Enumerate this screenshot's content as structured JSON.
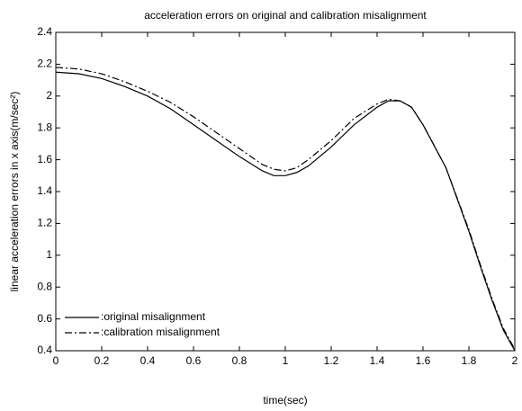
{
  "chart_data": {
    "type": "line",
    "title": "acceleration errors on original and calibration misalignment",
    "x_label": "time(sec)",
    "y_label": "linear acceleration errors in x axis(m/sec²)",
    "x": [
      0,
      0.1,
      0.2,
      0.3,
      0.4,
      0.5,
      0.6,
      0.7,
      0.8,
      0.9,
      0.95,
      1.0,
      1.05,
      1.1,
      1.2,
      1.3,
      1.4,
      1.45,
      1.5,
      1.55,
      1.6,
      1.7,
      1.8,
      1.85,
      1.9,
      1.95,
      2.0
    ],
    "series": [
      {
        "name": ":original misalignment",
        "color": "#000000",
        "dash": "solid",
        "values": [
          2.15,
          2.14,
          2.11,
          2.06,
          2.0,
          1.92,
          1.82,
          1.72,
          1.62,
          1.53,
          1.5,
          1.5,
          1.52,
          1.56,
          1.68,
          1.82,
          1.93,
          1.97,
          1.97,
          1.93,
          1.82,
          1.55,
          1.15,
          0.93,
          0.72,
          0.53,
          0.4
        ]
      },
      {
        "name": ":calibration misalignment",
        "color": "#000000",
        "dash": "dashdot",
        "values": [
          2.18,
          2.17,
          2.14,
          2.09,
          2.03,
          1.96,
          1.87,
          1.77,
          1.67,
          1.57,
          1.54,
          1.53,
          1.55,
          1.6,
          1.72,
          1.86,
          1.95,
          1.98,
          1.97,
          1.93,
          1.82,
          1.55,
          1.16,
          0.94,
          0.73,
          0.54,
          0.41
        ]
      }
    ],
    "xlim": [
      0,
      2
    ],
    "xticks": [
      0,
      0.2,
      0.4,
      0.6,
      0.8,
      1,
      1.2,
      1.4,
      1.6,
      1.8,
      2
    ],
    "ylim": [
      0.4,
      2.4
    ],
    "yticks": [
      0.4,
      0.6,
      0.8,
      1,
      1.2,
      1.4,
      1.6,
      1.8,
      2,
      2.2,
      2.4
    ],
    "legend": "lower left",
    "grid": false
  }
}
